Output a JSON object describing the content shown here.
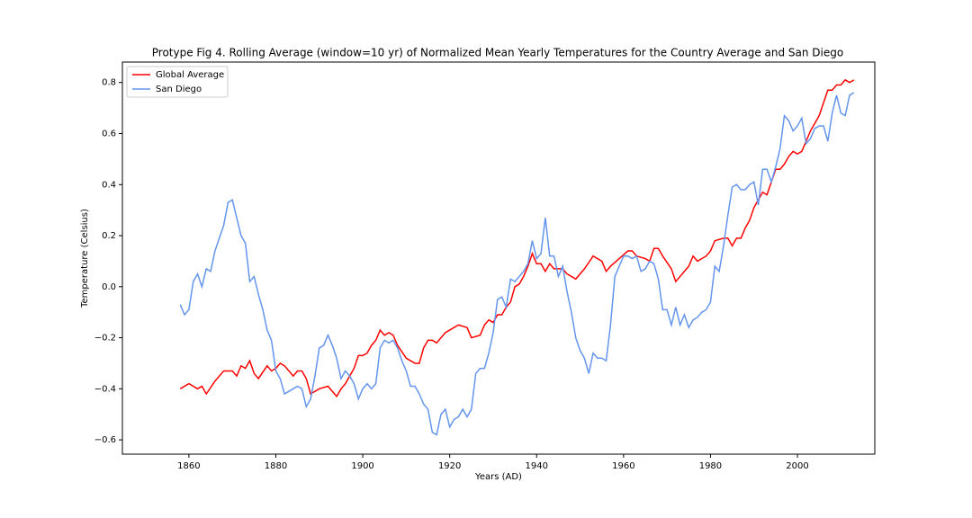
{
  "chart_data": {
    "type": "line",
    "title": "Protype Fig 4. Rolling Average (window=10 yr) of Normalized Mean Yearly Temperatures for the Country Average and San Diego",
    "xlabel": "Years (AD)",
    "ylabel": "Temperature (Celsius)",
    "xlim": [
      1844.7,
      2017.8
    ],
    "ylim": [
      -0.656,
      0.88
    ],
    "xticks": [
      1860,
      1880,
      1900,
      1920,
      1940,
      1960,
      1980,
      2000
    ],
    "yticks": [
      {
        "value": -0.6,
        "label": "−0.6"
      },
      {
        "value": -0.4,
        "label": "−0.4"
      },
      {
        "value": -0.2,
        "label": "−0.2"
      },
      {
        "value": 0,
        "label": "0.0"
      },
      {
        "value": 0.2,
        "label": "0.2"
      },
      {
        "value": 0.4,
        "label": "0.4"
      },
      {
        "value": 0.6,
        "label": "0.6"
      },
      {
        "value": 0.8,
        "label": "0.8"
      }
    ],
    "legend": "upper left",
    "series": [
      {
        "name": "Global Average",
        "color": "#ff0000",
        "x": [
          1858,
          1860,
          1862,
          1863,
          1864,
          1866,
          1868,
          1870,
          1871,
          1872,
          1873,
          1874,
          1875,
          1876,
          1878,
          1879,
          1880,
          1881,
          1882,
          1884,
          1885,
          1886,
          1887,
          1888,
          1890,
          1892,
          1894,
          1895,
          1896,
          1898,
          1899,
          1900,
          1901,
          1902,
          1903,
          1904,
          1905,
          1906,
          1907,
          1908,
          1910,
          1912,
          1913,
          1914,
          1915,
          1916,
          1917,
          1918,
          1919,
          1921,
          1922,
          1924,
          1925,
          1927,
          1928,
          1929,
          1930,
          1931,
          1932,
          1933,
          1934,
          1935,
          1936,
          1937,
          1938,
          1939,
          1940,
          1941,
          1942,
          1943,
          1944,
          1946,
          1947,
          1948,
          1949,
          1951,
          1953,
          1954,
          1955,
          1956,
          1957,
          1959,
          1961,
          1962,
          1963,
          1965,
          1966,
          1967,
          1968,
          1969,
          1971,
          1972,
          1973,
          1974,
          1975,
          1976,
          1977,
          1979,
          1980,
          1981,
          1983,
          1984,
          1985,
          1986,
          1987,
          1988,
          1989,
          1990,
          1991,
          1992,
          1993,
          1994,
          1995,
          1996,
          1997,
          1998,
          1999,
          2000,
          2001,
          2002,
          2003,
          2004,
          2005,
          2006,
          2007,
          2008,
          2009,
          2010,
          2011,
          2012,
          2013
        ],
        "values": [
          -0.4,
          -0.38,
          -0.4,
          -0.39,
          -0.42,
          -0.37,
          -0.33,
          -0.33,
          -0.35,
          -0.31,
          -0.32,
          -0.29,
          -0.34,
          -0.36,
          -0.31,
          -0.33,
          -0.32,
          -0.3,
          -0.31,
          -0.35,
          -0.33,
          -0.33,
          -0.36,
          -0.42,
          -0.4,
          -0.39,
          -0.43,
          -0.4,
          -0.38,
          -0.32,
          -0.27,
          -0.27,
          -0.26,
          -0.23,
          -0.21,
          -0.17,
          -0.19,
          -0.18,
          -0.19,
          -0.23,
          -0.28,
          -0.3,
          -0.3,
          -0.24,
          -0.21,
          -0.21,
          -0.22,
          -0.2,
          -0.18,
          -0.16,
          -0.15,
          -0.16,
          -0.2,
          -0.19,
          -0.15,
          -0.13,
          -0.14,
          -0.11,
          -0.11,
          -0.08,
          -0.06,
          0.0,
          0.01,
          0.04,
          0.08,
          0.13,
          0.09,
          0.09,
          0.06,
          0.09,
          0.07,
          0.07,
          0.05,
          0.04,
          0.03,
          0.07,
          0.12,
          0.11,
          0.1,
          0.06,
          0.08,
          0.11,
          0.14,
          0.14,
          0.12,
          0.11,
          0.1,
          0.15,
          0.15,
          0.12,
          0.07,
          0.02,
          0.04,
          0.06,
          0.08,
          0.12,
          0.1,
          0.12,
          0.14,
          0.18,
          0.19,
          0.19,
          0.16,
          0.19,
          0.19,
          0.23,
          0.26,
          0.31,
          0.34,
          0.37,
          0.36,
          0.41,
          0.46,
          0.46,
          0.48,
          0.51,
          0.53,
          0.52,
          0.53,
          0.57,
          0.61,
          0.64,
          0.67,
          0.72,
          0.77,
          0.77,
          0.79,
          0.79,
          0.81,
          0.8,
          0.81
        ]
      },
      {
        "name": "San Diego",
        "color": "#6495ed",
        "x": [
          1858,
          1859,
          1860,
          1861,
          1862,
          1863,
          1864,
          1865,
          1866,
          1868,
          1869,
          1870,
          1871,
          1872,
          1873,
          1874,
          1875,
          1876,
          1877,
          1878,
          1879,
          1880,
          1881,
          1882,
          1883,
          1884,
          1885,
          1886,
          1887,
          1888,
          1889,
          1890,
          1891,
          1892,
          1893,
          1894,
          1895,
          1896,
          1897,
          1898,
          1899,
          1900,
          1901,
          1902,
          1903,
          1904,
          1905,
          1906,
          1907,
          1908,
          1909,
          1910,
          1911,
          1912,
          1913,
          1914,
          1915,
          1916,
          1917,
          1918,
          1919,
          1920,
          1921,
          1922,
          1923,
          1924,
          1925,
          1926,
          1927,
          1928,
          1929,
          1930,
          1931,
          1932,
          1933,
          1934,
          1935,
          1936,
          1937,
          1938,
          1939,
          1940,
          1941,
          1942,
          1943,
          1944,
          1945,
          1946,
          1947,
          1948,
          1949,
          1950,
          1951,
          1952,
          1953,
          1954,
          1955,
          1956,
          1957,
          1958,
          1959,
          1960,
          1961,
          1962,
          1963,
          1964,
          1965,
          1966,
          1967,
          1968,
          1969,
          1970,
          1971,
          1972,
          1973,
          1974,
          1975,
          1976,
          1977,
          1978,
          1979,
          1980,
          1981,
          1982,
          1983,
          1984,
          1985,
          1986,
          1987,
          1988,
          1989,
          1990,
          1991,
          1992,
          1993,
          1994,
          1995,
          1996,
          1997,
          1998,
          1999,
          2000,
          2001,
          2002,
          2003,
          2004,
          2005,
          2006,
          2007,
          2008,
          2009,
          2010,
          2011,
          2012,
          2013
        ],
        "values": [
          -0.07,
          -0.11,
          -0.09,
          0.02,
          0.05,
          0.0,
          0.07,
          0.06,
          0.14,
          0.24,
          0.33,
          0.34,
          0.27,
          0.2,
          0.17,
          0.02,
          0.04,
          -0.03,
          -0.09,
          -0.17,
          -0.21,
          -0.33,
          -0.36,
          -0.42,
          -0.41,
          -0.4,
          -0.39,
          -0.4,
          -0.47,
          -0.44,
          -0.35,
          -0.24,
          -0.23,
          -0.19,
          -0.23,
          -0.28,
          -0.36,
          -0.33,
          -0.35,
          -0.38,
          -0.44,
          -0.4,
          -0.38,
          -0.4,
          -0.38,
          -0.24,
          -0.21,
          -0.22,
          -0.21,
          -0.24,
          -0.29,
          -0.33,
          -0.39,
          -0.39,
          -0.42,
          -0.46,
          -0.48,
          -0.57,
          -0.58,
          -0.5,
          -0.48,
          -0.55,
          -0.52,
          -0.51,
          -0.48,
          -0.51,
          -0.48,
          -0.34,
          -0.32,
          -0.32,
          -0.26,
          -0.18,
          -0.05,
          -0.04,
          -0.08,
          0.03,
          0.02,
          0.04,
          0.06,
          0.09,
          0.18,
          0.11,
          0.13,
          0.27,
          0.12,
          0.12,
          0.04,
          0.08,
          -0.02,
          -0.1,
          -0.2,
          -0.25,
          -0.28,
          -0.34,
          -0.26,
          -0.28,
          -0.28,
          -0.29,
          -0.15,
          0.04,
          0.08,
          0.12,
          0.12,
          0.11,
          0.12,
          0.06,
          0.07,
          0.1,
          0.09,
          0.03,
          -0.09,
          -0.09,
          -0.15,
          -0.08,
          -0.15,
          -0.11,
          -0.16,
          -0.13,
          -0.12,
          -0.1,
          -0.09,
          -0.06,
          0.08,
          0.06,
          0.16,
          0.28,
          0.39,
          0.4,
          0.38,
          0.38,
          0.4,
          0.41,
          0.32,
          0.46,
          0.46,
          0.41,
          0.47,
          0.54,
          0.67,
          0.65,
          0.61,
          0.63,
          0.66,
          0.56,
          0.58,
          0.62,
          0.63,
          0.63,
          0.57,
          0.68,
          0.75,
          0.68,
          0.67,
          0.75,
          0.76
        ]
      }
    ]
  }
}
